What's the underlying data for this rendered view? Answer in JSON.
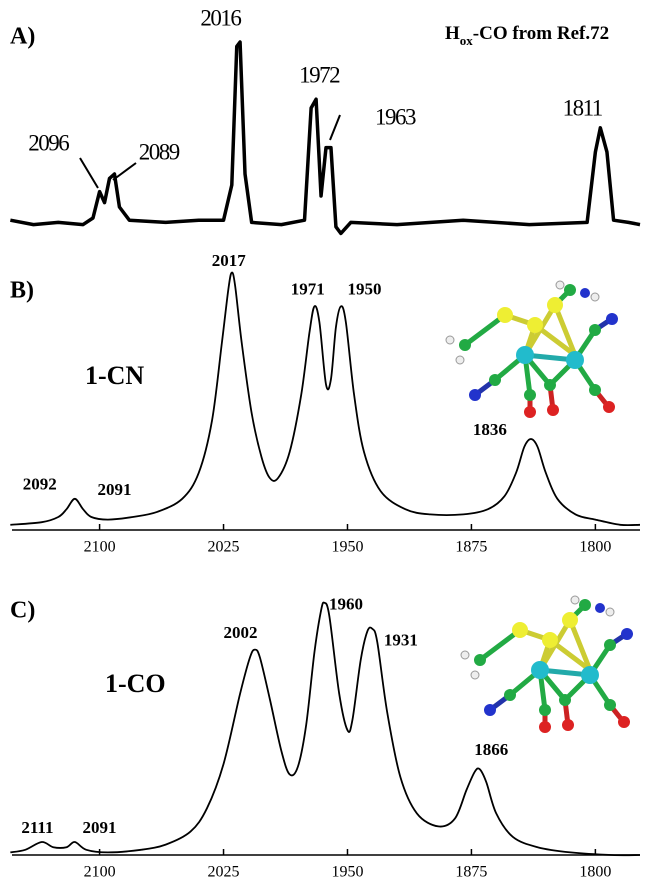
{
  "chart_data": [
    {
      "type": "line",
      "panel_label": "A)",
      "title_parts": [
        "H",
        "ox",
        "-CO from Ref.72"
      ],
      "xlim": [
        2153,
        1773
      ],
      "ylim": [
        0,
        1
      ],
      "color": "#000000",
      "x": [
        2154,
        2140,
        2125,
        2110,
        2104,
        2100,
        2097,
        2094,
        2091,
        2088,
        2082,
        2060,
        2040,
        2025,
        2020,
        2017,
        2015,
        2012,
        2008,
        1990,
        1976,
        1972,
        1969,
        1966,
        1963,
        1960,
        1957,
        1954,
        1948,
        1920,
        1880,
        1840,
        1805,
        1800,
        1797,
        1793,
        1789,
        1780,
        1773
      ],
      "values": [
        0.09,
        0.07,
        0.08,
        0.07,
        0.1,
        0.22,
        0.17,
        0.28,
        0.3,
        0.15,
        0.09,
        0.08,
        0.09,
        0.09,
        0.25,
        0.88,
        0.9,
        0.3,
        0.08,
        0.07,
        0.09,
        0.6,
        0.64,
        0.2,
        0.42,
        0.42,
        0.06,
        0.03,
        0.08,
        0.07,
        0.09,
        0.07,
        0.08,
        0.4,
        0.51,
        0.4,
        0.09,
        0.08,
        0.07
      ],
      "annotations": [
        {
          "text": "2096",
          "x": 2096,
          "y": 0.43
        },
        {
          "text": "2089",
          "x": 2089,
          "y": 0.39
        },
        {
          "text": "2016",
          "x": 2016,
          "y": 1.0
        },
        {
          "text": "1972",
          "x": 1972,
          "y": 0.74
        },
        {
          "text": "1963",
          "x": 1963,
          "y": 0.55
        },
        {
          "text": "1811",
          "x": 1811,
          "y": 0.59
        }
      ]
    },
    {
      "type": "line",
      "panel_label": "B)",
      "label": "1-CN",
      "xlim": [
        2153,
        1773
      ],
      "ylim": [
        0,
        1
      ],
      "color": "#000000",
      "xticks": [
        2100,
        2025,
        1950,
        1875,
        1800
      ],
      "x": [
        2154,
        2135,
        2125,
        2120,
        2115,
        2110,
        2105,
        2095,
        2080,
        2065,
        2050,
        2040,
        2032,
        2026,
        2022,
        2020,
        2018,
        2014,
        2008,
        2002,
        1997,
        1992,
        1985,
        1978,
        1973,
        1970,
        1967,
        1963,
        1960,
        1957,
        1954,
        1951,
        1946,
        1940,
        1930,
        1915,
        1900,
        1880,
        1865,
        1855,
        1848,
        1843,
        1839,
        1835,
        1830,
        1823,
        1812,
        1800,
        1785,
        1773
      ],
      "values": [
        0.02,
        0.03,
        0.05,
        0.08,
        0.12,
        0.08,
        0.05,
        0.04,
        0.05,
        0.07,
        0.12,
        0.22,
        0.42,
        0.72,
        0.93,
        0.99,
        0.94,
        0.72,
        0.45,
        0.28,
        0.2,
        0.2,
        0.3,
        0.52,
        0.76,
        0.86,
        0.8,
        0.56,
        0.58,
        0.78,
        0.86,
        0.8,
        0.52,
        0.3,
        0.15,
        0.08,
        0.06,
        0.06,
        0.08,
        0.13,
        0.22,
        0.32,
        0.35,
        0.32,
        0.22,
        0.12,
        0.06,
        0.04,
        0.02,
        0.02
      ],
      "annotations": [
        {
          "text": "2092",
          "x": 2092,
          "y": 0.17
        },
        {
          "text": "2091",
          "x": 2091,
          "y": 0.15
        },
        {
          "text": "2017",
          "x": 2017,
          "y": 1.03
        },
        {
          "text": "1971",
          "x": 1971,
          "y": 0.92
        },
        {
          "text": "1950",
          "x": 1950,
          "y": 0.92
        },
        {
          "text": "1836",
          "x": 1836,
          "y": 0.38
        }
      ]
    },
    {
      "type": "line",
      "panel_label": "C)",
      "label": "1-CO",
      "xlim": [
        2153,
        1773
      ],
      "ylim": [
        0,
        1
      ],
      "color": "#000000",
      "xticks": [
        2100,
        2025,
        1950,
        1875,
        1800
      ],
      "x": [
        2154,
        2145,
        2135,
        2128,
        2120,
        2115,
        2108,
        2095,
        2075,
        2060,
        2045,
        2035,
        2025,
        2015,
        2009,
        2006,
        2003,
        1997,
        1990,
        1985,
        1980,
        1975,
        1970,
        1966,
        1964,
        1961,
        1955,
        1950,
        1947,
        1942,
        1938,
        1935,
        1932,
        1926,
        1918,
        1908,
        1895,
        1885,
        1878,
        1873,
        1870,
        1866,
        1860,
        1850,
        1835,
        1815,
        1790,
        1773
      ],
      "values": [
        0.01,
        0.02,
        0.05,
        0.03,
        0.03,
        0.05,
        0.02,
        0.01,
        0.02,
        0.04,
        0.09,
        0.18,
        0.35,
        0.62,
        0.76,
        0.79,
        0.76,
        0.6,
        0.4,
        0.31,
        0.34,
        0.5,
        0.78,
        0.94,
        0.97,
        0.92,
        0.62,
        0.48,
        0.52,
        0.75,
        0.86,
        0.87,
        0.82,
        0.55,
        0.3,
        0.16,
        0.11,
        0.14,
        0.25,
        0.32,
        0.33,
        0.28,
        0.16,
        0.07,
        0.03,
        0.01,
        0.0,
        0.0
      ],
      "annotations": [
        {
          "text": "2111",
          "x": 2111,
          "y": 0.1
        },
        {
          "text": "2091",
          "x": 2091,
          "y": 0.1
        },
        {
          "text": "2002",
          "x": 2002,
          "y": 0.85
        },
        {
          "text": "1960",
          "x": 1960,
          "y": 0.96
        },
        {
          "text": "1931",
          "x": 1931,
          "y": 0.82
        },
        {
          "text": "1866",
          "x": 1866,
          "y": 0.4
        }
      ]
    }
  ]
}
